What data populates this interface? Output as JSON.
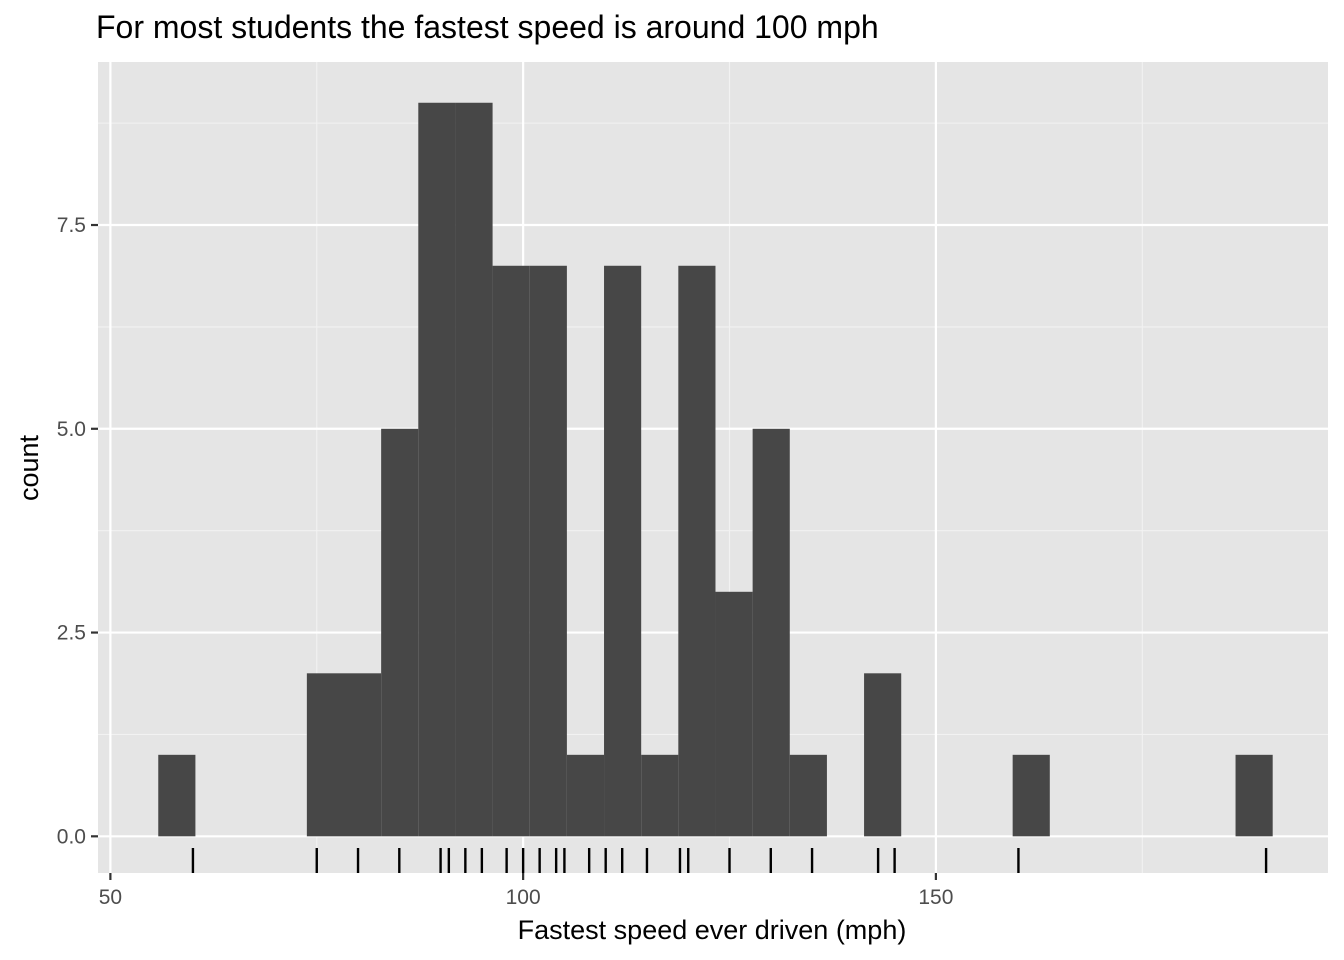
{
  "chart_data": {
    "type": "bar",
    "title": "For most students the fastest speed is around 100 mph",
    "xlabel": "Fastest speed ever driven (mph)",
    "ylabel": "count",
    "xlim": [
      48.5,
      197.5
    ],
    "ylim": [
      -0.45,
      9.5
    ],
    "x_ticks": [
      50,
      100,
      150
    ],
    "y_ticks": [
      0.0,
      2.5,
      5.0,
      7.5
    ],
    "x_tick_labels": [
      "50",
      "100",
      "150"
    ],
    "y_tick_labels": [
      "0.0",
      "2.5",
      "5.0",
      "7.5"
    ],
    "grid": true,
    "bin_width": 4.5,
    "bins": [
      {
        "start": 55.8,
        "end": 60.3,
        "count": 1
      },
      {
        "start": 73.8,
        "end": 78.3,
        "count": 2
      },
      {
        "start": 78.3,
        "end": 82.8,
        "count": 2
      },
      {
        "start": 82.8,
        "end": 87.3,
        "count": 5
      },
      {
        "start": 87.3,
        "end": 91.8,
        "count": 9
      },
      {
        "start": 91.8,
        "end": 96.3,
        "count": 9
      },
      {
        "start": 96.3,
        "end": 100.8,
        "count": 7
      },
      {
        "start": 100.8,
        "end": 105.3,
        "count": 7
      },
      {
        "start": 105.3,
        "end": 109.8,
        "count": 1
      },
      {
        "start": 109.8,
        "end": 114.3,
        "count": 7
      },
      {
        "start": 114.3,
        "end": 118.8,
        "count": 1
      },
      {
        "start": 118.8,
        "end": 123.3,
        "count": 7
      },
      {
        "start": 123.3,
        "end": 127.8,
        "count": 3
      },
      {
        "start": 127.8,
        "end": 132.3,
        "count": 5
      },
      {
        "start": 132.3,
        "end": 136.8,
        "count": 1
      },
      {
        "start": 141.3,
        "end": 145.8,
        "count": 2
      },
      {
        "start": 159.3,
        "end": 163.8,
        "count": 1
      },
      {
        "start": 186.3,
        "end": 190.8,
        "count": 1
      }
    ],
    "rug": [
      60,
      75,
      80,
      85,
      90,
      91,
      93,
      95,
      98,
      100,
      102,
      104,
      105,
      108,
      110,
      112,
      115,
      119,
      120,
      125,
      130,
      135,
      143,
      145,
      160,
      190
    ],
    "colors": {
      "bar": "#474747",
      "panel": "#e5e5e5",
      "grid_major": "#ffffff",
      "grid_minor": "#f2f2f2",
      "rug": "#000000",
      "tick": "#333333",
      "tick_label": "#4d4d4d"
    }
  }
}
